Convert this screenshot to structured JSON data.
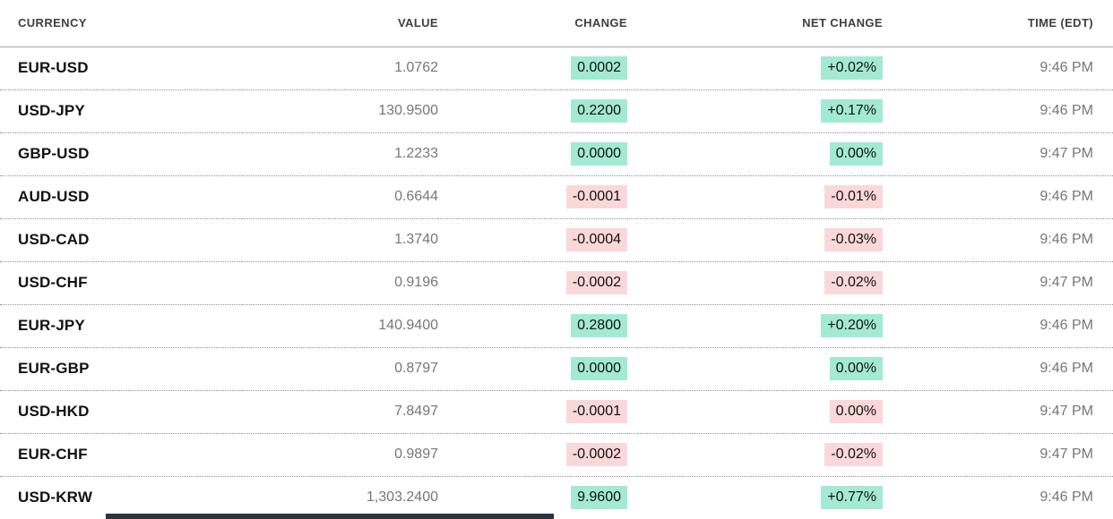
{
  "table": {
    "headers": {
      "currency": "CURRENCY",
      "value": "VALUE",
      "change": "CHANGE",
      "net_change": "NET CHANGE",
      "time": "TIME (EDT)"
    },
    "rows": [
      {
        "pair": "EUR-USD",
        "value": "1.0762",
        "change": "0.0002",
        "net_change": "+0.02%",
        "time": "9:46 PM",
        "direction": "up"
      },
      {
        "pair": "USD-JPY",
        "value": "130.9500",
        "change": "0.2200",
        "net_change": "+0.17%",
        "time": "9:46 PM",
        "direction": "up"
      },
      {
        "pair": "GBP-USD",
        "value": "1.2233",
        "change": "0.0000",
        "net_change": "0.00%",
        "time": "9:47 PM",
        "direction": "up"
      },
      {
        "pair": "AUD-USD",
        "value": "0.6644",
        "change": "-0.0001",
        "net_change": "-0.01%",
        "time": "9:46 PM",
        "direction": "down"
      },
      {
        "pair": "USD-CAD",
        "value": "1.3740",
        "change": "-0.0004",
        "net_change": "-0.03%",
        "time": "9:46 PM",
        "direction": "down"
      },
      {
        "pair": "USD-CHF",
        "value": "0.9196",
        "change": "-0.0002",
        "net_change": "-0.02%",
        "time": "9:47 PM",
        "direction": "down"
      },
      {
        "pair": "EUR-JPY",
        "value": "140.9400",
        "change": "0.2800",
        "net_change": "+0.20%",
        "time": "9:46 PM",
        "direction": "up"
      },
      {
        "pair": "EUR-GBP",
        "value": "0.8797",
        "change": "0.0000",
        "net_change": "0.00%",
        "time": "9:46 PM",
        "direction": "up"
      },
      {
        "pair": "USD-HKD",
        "value": "7.8497",
        "change": "-0.0001",
        "net_change": "0.00%",
        "time": "9:47 PM",
        "direction": "down"
      },
      {
        "pair": "EUR-CHF",
        "value": "0.9897",
        "change": "-0.0002",
        "net_change": "-0.02%",
        "time": "9:47 PM",
        "direction": "down"
      },
      {
        "pair": "USD-KRW",
        "value": "1,303.2400",
        "change": "9.9600",
        "net_change": "+0.77%",
        "time": "9:46 PM",
        "direction": "up"
      }
    ]
  },
  "colors": {
    "positive_badge_bg": "#a3ead2",
    "negative_badge_bg": "#fad8d9",
    "ticker_text": "#111111",
    "muted_text": "#767676"
  }
}
